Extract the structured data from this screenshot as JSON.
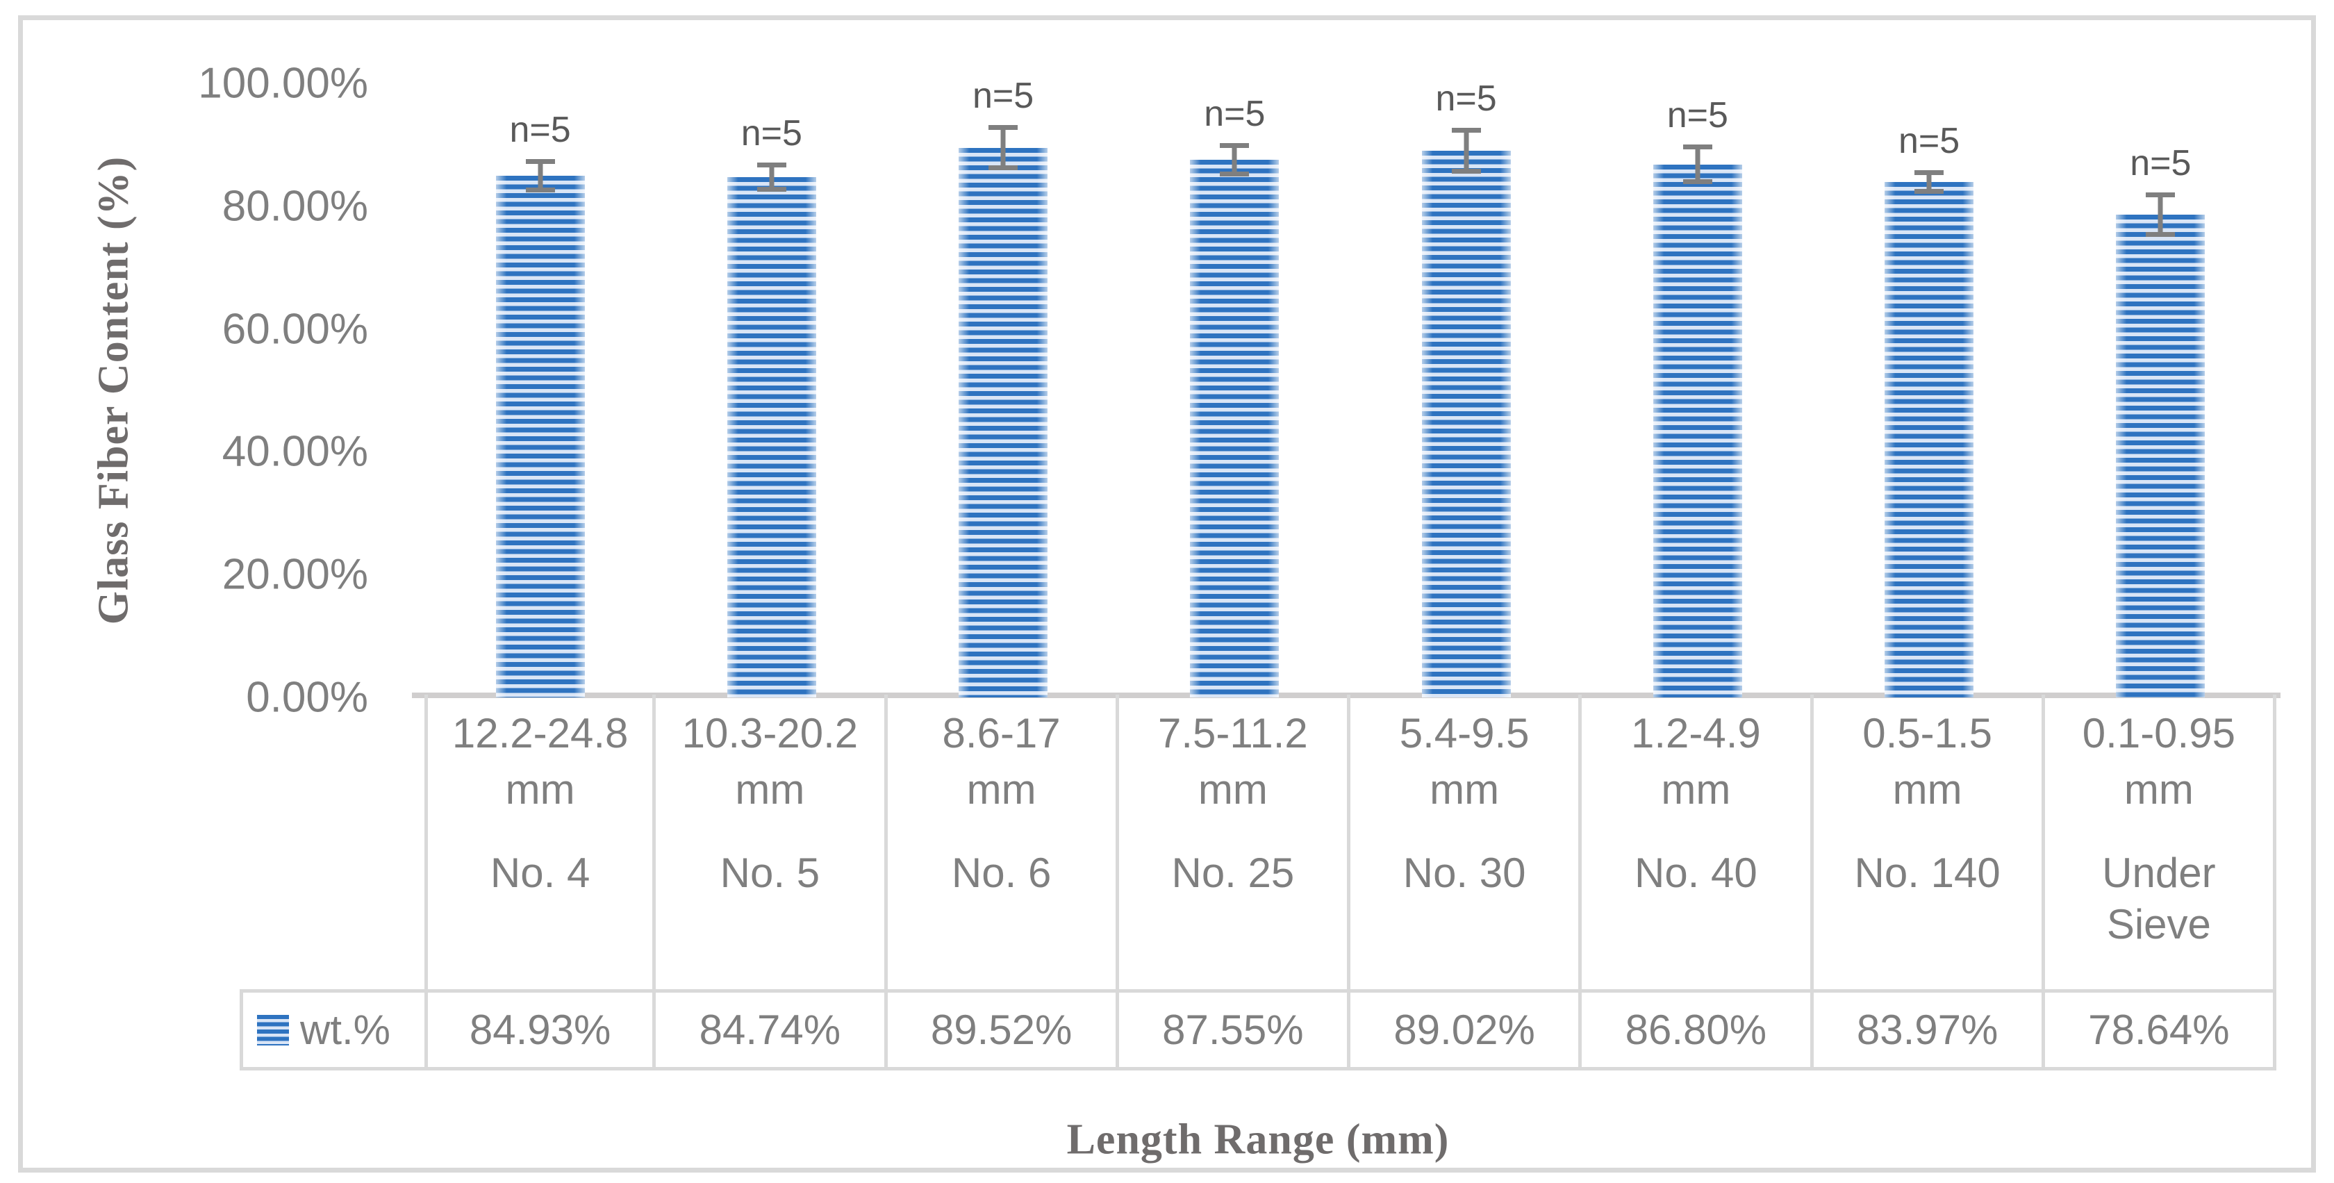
{
  "colors": {
    "bar_dark": "#2E73C0",
    "bar_light": "#D9E5F6",
    "error_bar": "#7F7F7F",
    "tick_text": "#7F7F7F",
    "table_text": "#7F7F7F",
    "n_label_text": "#595959",
    "axis_title_text": "#6F6C6C",
    "table_border": "#D9D9D9",
    "axis_line": "#D0CECE",
    "frame_border": "#D9D9D9"
  },
  "chart_data": {
    "type": "bar",
    "title": "",
    "xlabel": "Length Range (mm)",
    "ylabel": "Glass Fiber Content (%)",
    "ylim": [
      0,
      100
    ],
    "grid": false,
    "legend_position": "table-key-bottom-left",
    "legend_label": "wt.%",
    "yticks": [
      {
        "value": 100,
        "label": "100.00%"
      },
      {
        "value": 80,
        "label": "80.00%"
      },
      {
        "value": 60,
        "label": "60.00%"
      },
      {
        "value": 40,
        "label": "40.00%"
      },
      {
        "value": 20,
        "label": "20.00%"
      },
      {
        "value": 0,
        "label": "0.00%"
      }
    ],
    "categories": [
      {
        "length_range": "12.2-24.8",
        "unit": "mm",
        "sieve": "No. 4",
        "value": 84.93,
        "value_label": "84.93%",
        "error_pct": 2.7,
        "n_label": "n=5"
      },
      {
        "length_range": "10.3-20.2",
        "unit": "mm",
        "sieve": "No. 5",
        "value": 84.74,
        "value_label": "84.74%",
        "error_pct": 2.4,
        "n_label": "n=5"
      },
      {
        "length_range": "8.6-17",
        "unit": "mm",
        "sieve": "No. 6",
        "value": 89.52,
        "value_label": "89.52%",
        "error_pct": 3.7,
        "n_label": "n=5"
      },
      {
        "length_range": "7.5-11.2",
        "unit": "mm",
        "sieve": "No. 25",
        "value": 87.55,
        "value_label": "87.55%",
        "error_pct": 2.7,
        "n_label": "n=5"
      },
      {
        "length_range": "5.4-9.5",
        "unit": "mm",
        "sieve": "No. 30",
        "value": 89.02,
        "value_label": "89.02%",
        "error_pct": 3.7,
        "n_label": "n=5"
      },
      {
        "length_range": "1.2-4.9",
        "unit": "mm",
        "sieve": "No. 40",
        "value": 86.8,
        "value_label": "86.80%",
        "error_pct": 3.2,
        "n_label": "n=5"
      },
      {
        "length_range": "0.5-1.5",
        "unit": "mm",
        "sieve": "No. 140",
        "value": 83.97,
        "value_label": "83.97%",
        "error_pct": 1.9,
        "n_label": "n=5"
      },
      {
        "length_range": "0.1-0.95",
        "unit": "mm",
        "sieve": "Under Sieve",
        "value": 78.64,
        "value_label": "78.64%",
        "error_pct": 3.6,
        "n_label": "n=5"
      }
    ]
  }
}
